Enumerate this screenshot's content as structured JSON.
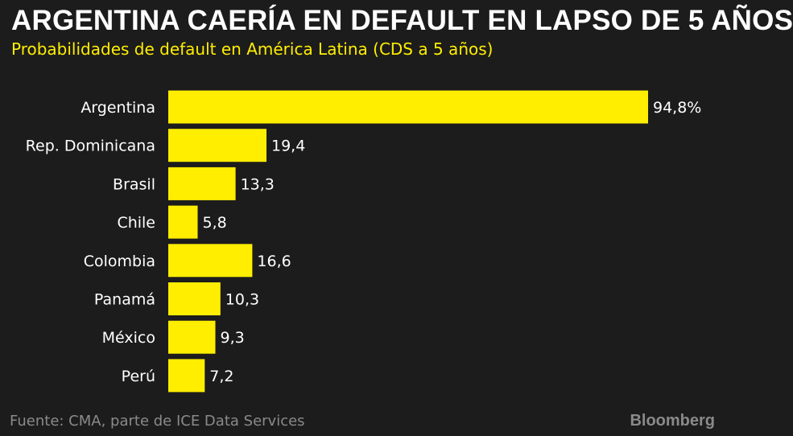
{
  "header": {
    "title": "ARGENTINA CAERÍA EN DEFAULT EN LAPSO DE 5 AÑOS",
    "subtitle": "Probabilidades de default en América Latina (CDS a 5 años)"
  },
  "footer": {
    "source": "Fuente: CMA, parte de ICE Data Services",
    "brand": "Bloomberg"
  },
  "colors": {
    "background": "#1c1c1c",
    "bar": "#ffee00",
    "subtitle": "#ffee00",
    "text": "#ffffff",
    "footer": "#8a8a8a"
  },
  "chart_data": {
    "type": "bar",
    "orientation": "horizontal",
    "title": "ARGENTINA CAERÍA EN DEFAULT EN LAPSO DE 5 AÑOS",
    "subtitle": "Probabilidades de default en América Latina (CDS a 5 años)",
    "categories": [
      "Argentina",
      "Rep. Dominicana",
      "Brasil",
      "Chile",
      "Colombia",
      "Panamá",
      "México",
      "Perú"
    ],
    "values": [
      94.8,
      19.4,
      13.3,
      5.8,
      16.6,
      10.3,
      9.3,
      7.2
    ],
    "value_labels": [
      "94,8%",
      "19,4",
      "13,3",
      "5,8",
      "16,6",
      "10,3",
      "9,3",
      "7,2"
    ],
    "xlim": [
      0,
      94.8
    ],
    "grid": false,
    "legend": "none",
    "xlabel": "",
    "ylabel": ""
  }
}
